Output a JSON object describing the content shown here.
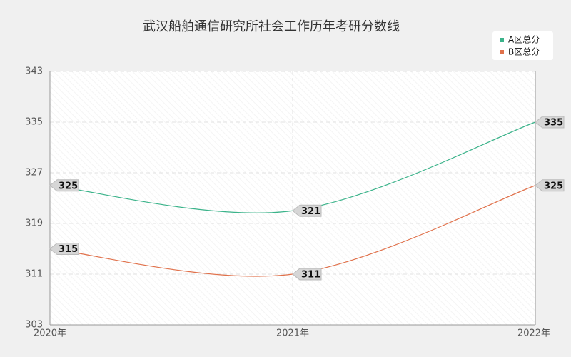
{
  "chart_data": {
    "type": "line",
    "title": "武汉船舶通信研究所社会工作历年考研分数线",
    "categories": [
      "2020年",
      "2021年",
      "2022年"
    ],
    "series": [
      {
        "name": "A区总分",
        "color": "#3bb38a",
        "values": [
          325,
          321,
          335
        ]
      },
      {
        "name": "B区总分",
        "color": "#e0714b",
        "values": [
          315,
          311,
          325
        ]
      }
    ],
    "ylim": [
      303,
      343
    ],
    "yticks": [
      303,
      311,
      319,
      327,
      335,
      343
    ],
    "grid": true,
    "legend": "top-right",
    "smooth": true,
    "data_labels": true
  }
}
